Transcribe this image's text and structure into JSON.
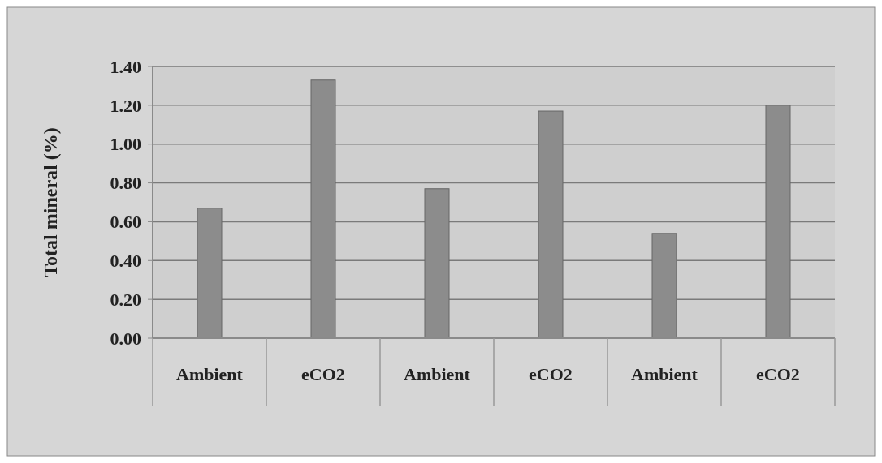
{
  "chart_data": {
    "type": "bar",
    "ylabel": "Total mineral (%)",
    "categories": [
      "Ambient",
      "eCO2",
      "Ambient",
      "eCO2",
      "Ambient",
      "eCO2"
    ],
    "values": [
      0.67,
      1.33,
      0.77,
      1.17,
      0.54,
      1.2
    ],
    "color": "#8c8c8c",
    "ylim": [
      0,
      1.4
    ],
    "yticks": [
      {
        "value": 0,
        "label": "0.00"
      },
      {
        "value": 0.2,
        "label": "0.20"
      },
      {
        "value": 0.4,
        "label": "0.40"
      },
      {
        "value": 0.6,
        "label": "0.60"
      },
      {
        "value": 0.8,
        "label": "0.80"
      },
      {
        "value": 1.0,
        "label": "1.00"
      },
      {
        "value": 1.2,
        "label": "1.20"
      },
      {
        "value": 1.4,
        "label": "1.40"
      }
    ],
    "grid": "y"
  }
}
